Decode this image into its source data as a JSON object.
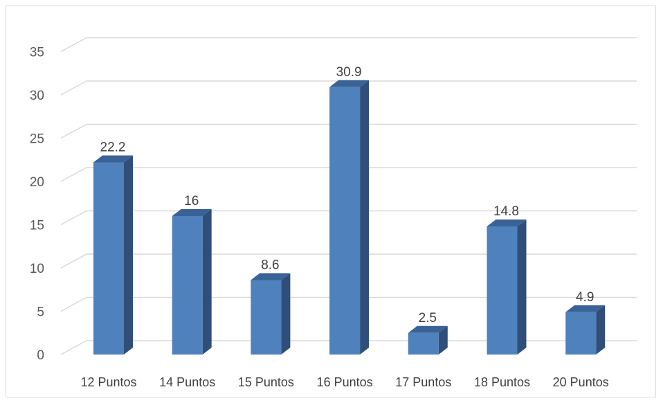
{
  "chart_data": {
    "type": "bar",
    "style": "3d-column",
    "categories": [
      "12 Puntos",
      "14 Puntos",
      "15 Puntos",
      "16 Puntos",
      "17 Puntos",
      "18 Puntos",
      "20 Puntos"
    ],
    "values": [
      22.2,
      16,
      8.6,
      30.9,
      2.5,
      14.8,
      4.9
    ],
    "data_labels": [
      "22.2",
      "16",
      "8.6",
      "30.9",
      "2.5",
      "14.8",
      "4.9"
    ],
    "title": "",
    "xlabel": "",
    "ylabel": "",
    "ylim": [
      0,
      35
    ],
    "yticks": [
      0,
      5,
      10,
      15,
      20,
      25,
      30,
      35
    ],
    "grid": true,
    "legend": "none",
    "colors": {
      "bar_front": "#4f81bd",
      "bar_side": "#2f4f7a",
      "bar_top": "#3b6296",
      "grid": "#d9d9d9"
    }
  }
}
